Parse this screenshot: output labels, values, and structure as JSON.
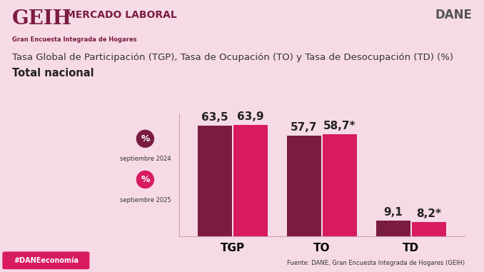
{
  "header": {
    "logo": "GEIH",
    "title": "MERCADO LABORAL",
    "subtitle": "Gran Encuesta Integrada de Hogares",
    "brand": "DANE"
  },
  "footer": {
    "source": "Fuente: DANE, Gran Encuesta Integrada de Hogares (GEIH)",
    "hashtag": "#DANEeconomía"
  },
  "legend_symbol": "%",
  "chart_data": {
    "type": "bar",
    "title": "Tasa Global de Participación (TGP), Tasa de Ocupación (TO) y Tasa de Desocupación (TD) (%)",
    "subtitle": "Total nacional",
    "categories": [
      "TGP",
      "TO",
      "TD"
    ],
    "series": [
      {
        "name": "septiembre 2024",
        "color": "#7a1c40",
        "values": [
          63.5,
          57.7,
          9.1
        ],
        "value_labels": [
          "63,5",
          "57,7",
          "9,1"
        ]
      },
      {
        "name": "septiembre 2025",
        "color": "#d81b60",
        "values": [
          63.9,
          58.7,
          8.2
        ],
        "value_labels": [
          "63,9",
          "58,7*",
          "8,2*"
        ]
      }
    ],
    "ylim": [
      0,
      70
    ],
    "data_labels": true,
    "tick_labels": "x",
    "grid": false
  }
}
